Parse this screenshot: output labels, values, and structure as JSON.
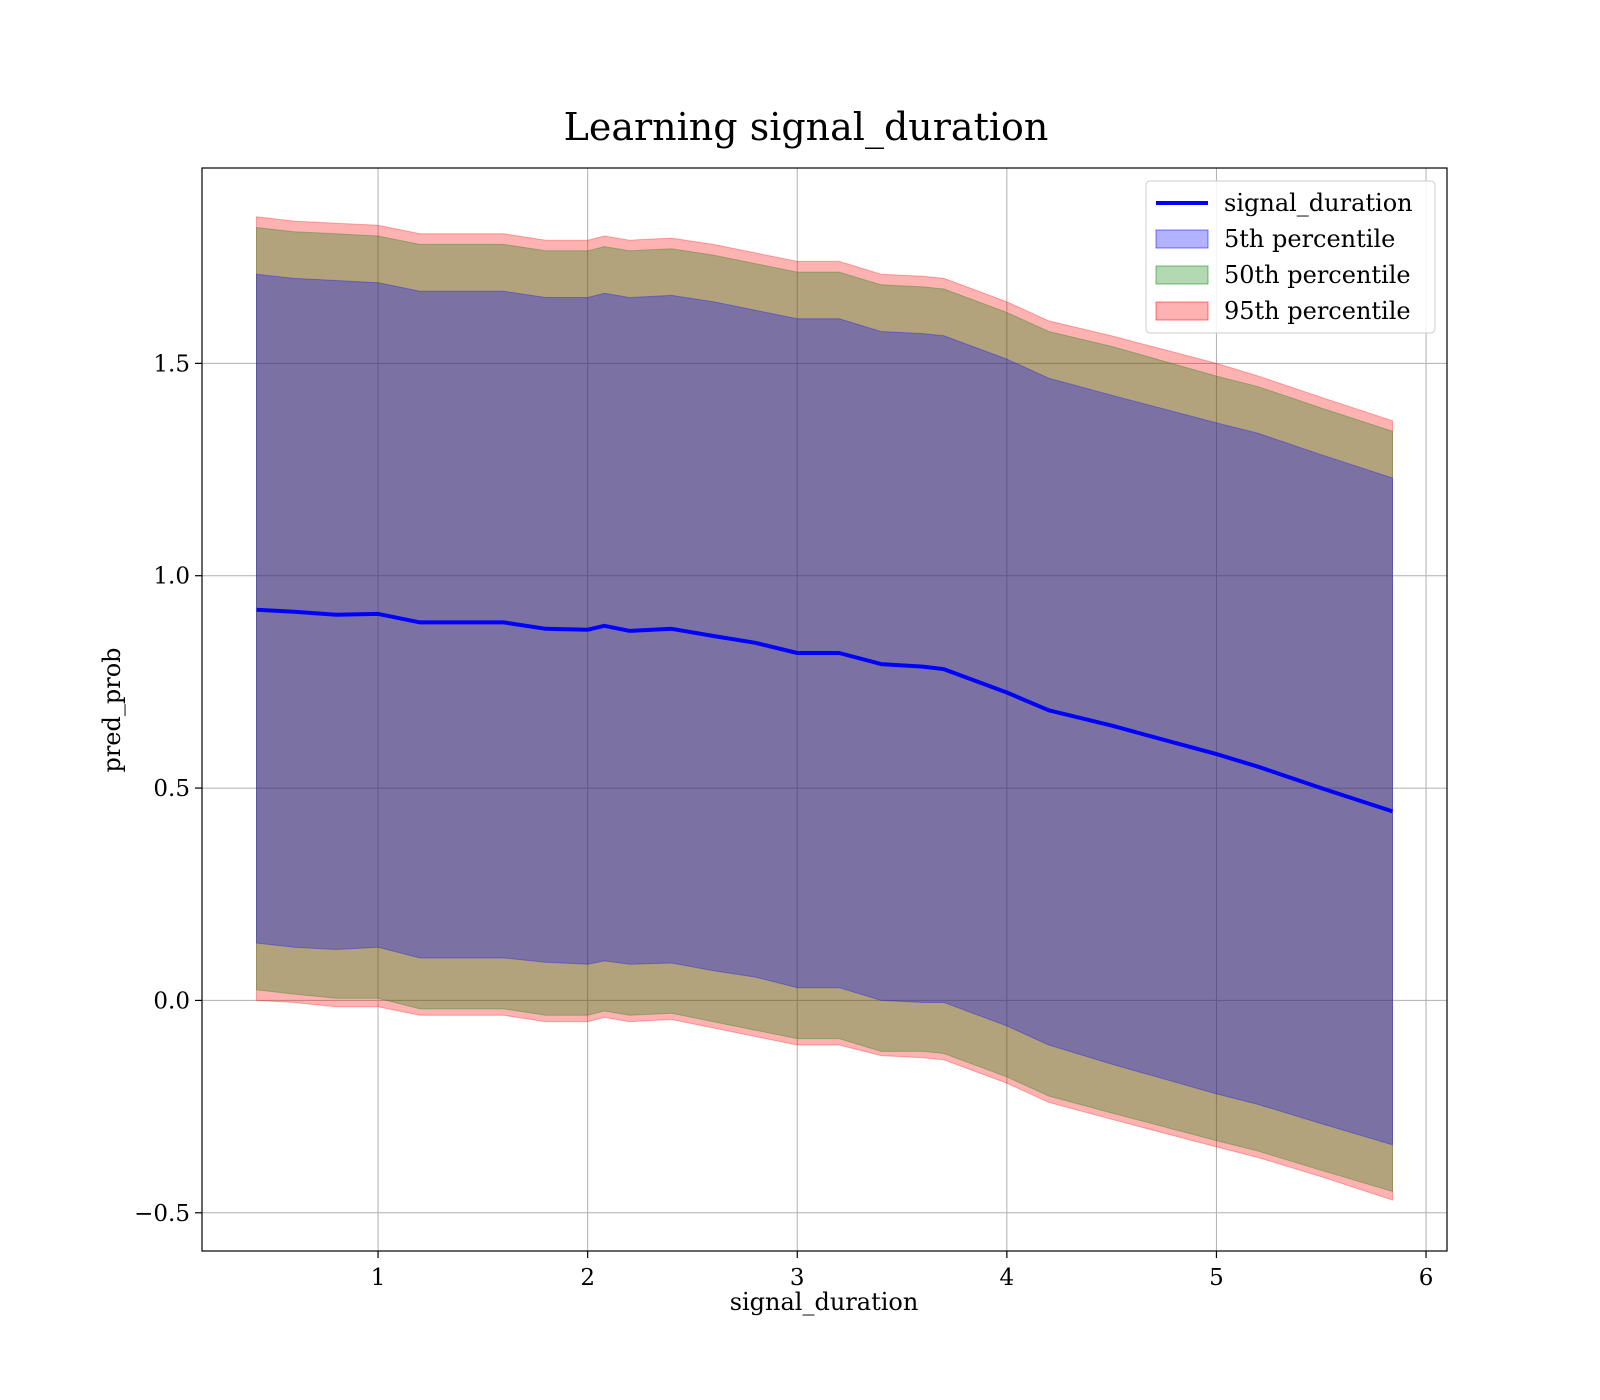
{
  "chart_data": {
    "type": "area",
    "title": "Learning signal_duration",
    "xlabel": "signal_duration",
    "ylabel": "pred_prob",
    "xlim": [
      0.16,
      6.1
    ],
    "ylim": [
      -0.59,
      1.96
    ],
    "xticks": [
      1,
      2,
      3,
      4,
      5,
      6
    ],
    "xtick_labels": [
      "1",
      "2",
      "3",
      "4",
      "5",
      "6"
    ],
    "yticks": [
      -0.5,
      0.0,
      0.5,
      1.0,
      1.5
    ],
    "ytick_labels": [
      "−0.5",
      "0.0",
      "0.5",
      "1.0",
      "1.5"
    ],
    "grid": true,
    "legend_position": "top-right",
    "x": [
      0.42,
      0.6,
      0.8,
      1.0,
      1.2,
      1.4,
      1.6,
      1.8,
      2.0,
      2.08,
      2.2,
      2.4,
      2.6,
      2.8,
      3.0,
      3.2,
      3.4,
      3.6,
      3.7,
      4.0,
      4.2,
      4.5,
      5.0,
      5.2,
      5.5,
      5.84
    ],
    "series": [
      {
        "name": "signal_duration",
        "kind": "line",
        "color": "#0000ff",
        "values": [
          0.92,
          0.915,
          0.908,
          0.91,
          0.89,
          0.89,
          0.89,
          0.875,
          0.873,
          0.882,
          0.87,
          0.875,
          0.858,
          0.842,
          0.818,
          0.818,
          0.792,
          0.786,
          0.78,
          0.725,
          0.683,
          0.647,
          0.58,
          0.55,
          0.5,
          0.445
        ]
      },
      {
        "name": "5th percentile",
        "kind": "band",
        "color": "#0000ff",
        "opacity": 0.3,
        "lower": [
          0.135,
          0.125,
          0.12,
          0.125,
          0.1,
          0.1,
          0.1,
          0.09,
          0.085,
          0.093,
          0.085,
          0.088,
          0.07,
          0.055,
          0.03,
          0.03,
          0.0,
          -0.005,
          -0.005,
          -0.06,
          -0.105,
          -0.15,
          -0.22,
          -0.245,
          -0.29,
          -0.34
        ],
        "upper": [
          1.71,
          1.7,
          1.695,
          1.69,
          1.67,
          1.67,
          1.67,
          1.655,
          1.655,
          1.665,
          1.655,
          1.66,
          1.645,
          1.625,
          1.605,
          1.605,
          1.575,
          1.57,
          1.565,
          1.51,
          1.465,
          1.425,
          1.36,
          1.335,
          1.285,
          1.23
        ]
      },
      {
        "name": "50th percentile",
        "kind": "band",
        "color": "#008000",
        "opacity": 0.3,
        "lower": [
          0.025,
          0.015,
          0.005,
          0.005,
          -0.02,
          -0.02,
          -0.02,
          -0.035,
          -0.035,
          -0.025,
          -0.035,
          -0.03,
          -0.05,
          -0.07,
          -0.09,
          -0.09,
          -0.12,
          -0.12,
          -0.125,
          -0.18,
          -0.225,
          -0.265,
          -0.33,
          -0.355,
          -0.4,
          -0.45
        ],
        "upper": [
          1.82,
          1.81,
          1.805,
          1.8,
          1.78,
          1.78,
          1.78,
          1.765,
          1.765,
          1.775,
          1.765,
          1.77,
          1.755,
          1.735,
          1.715,
          1.715,
          1.685,
          1.68,
          1.675,
          1.62,
          1.575,
          1.54,
          1.47,
          1.445,
          1.395,
          1.34
        ]
      },
      {
        "name": "95th percentile",
        "kind": "band",
        "color": "#ff0000",
        "opacity": 0.3,
        "lower": [
          0.0,
          -0.005,
          -0.015,
          -0.015,
          -0.035,
          -0.035,
          -0.035,
          -0.05,
          -0.05,
          -0.04,
          -0.05,
          -0.045,
          -0.065,
          -0.085,
          -0.105,
          -0.105,
          -0.13,
          -0.135,
          -0.14,
          -0.195,
          -0.24,
          -0.28,
          -0.345,
          -0.37,
          -0.415,
          -0.47
        ],
        "upper": [
          1.845,
          1.835,
          1.83,
          1.825,
          1.805,
          1.805,
          1.805,
          1.79,
          1.79,
          1.8,
          1.79,
          1.795,
          1.78,
          1.76,
          1.74,
          1.74,
          1.71,
          1.705,
          1.7,
          1.645,
          1.6,
          1.565,
          1.5,
          1.47,
          1.42,
          1.365
        ]
      }
    ]
  }
}
